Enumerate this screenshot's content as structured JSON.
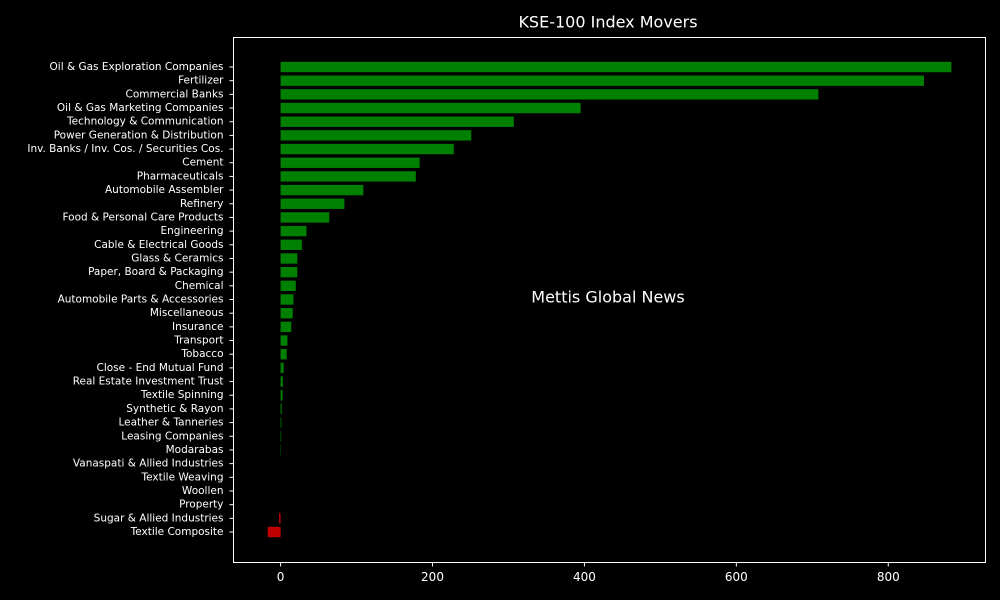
{
  "chart_data": {
    "type": "barh",
    "title": "KSE-100 Index Movers",
    "annotation": "Mettis Global News",
    "categories": [
      "Oil & Gas Exploration Companies",
      "Fertilizer",
      "Commercial Banks",
      "Oil & Gas Marketing Companies",
      "Technology & Communication",
      "Power Generation & Distribution",
      "Inv. Banks / Inv. Cos. / Securities Cos.",
      "Cement",
      "Pharmaceuticals",
      "Automobile Assembler",
      "Refinery",
      "Food & Personal Care Products",
      "Engineering",
      "Cable & Electrical Goods",
      "Glass & Ceramics",
      "Paper, Board & Packaging",
      "Chemical",
      "Automobile Parts & Accessories",
      "Miscellaneous",
      "Insurance",
      "Transport",
      "Tobacco",
      "Close - End Mutual Fund",
      "Real Estate Investment Trust",
      "Textile Spinning",
      "Synthetic & Rayon",
      "Leather & Tanneries",
      "Leasing Companies",
      "Modarabas",
      "Vanaspati & Allied Industries",
      "Textile Weaving",
      "Woollen",
      "Property",
      "Sugar & Allied Industries",
      "Textile Composite"
    ],
    "values": [
      883,
      847,
      708,
      395,
      307,
      251,
      228,
      183,
      178,
      109,
      84,
      64,
      34,
      28,
      22,
      22,
      20,
      17,
      16,
      14,
      9,
      8,
      4,
      3,
      2.5,
      1.5,
      1,
      0.8,
      0.5,
      0,
      0,
      0,
      0,
      -2,
      -17
    ],
    "color": "#008000",
    "negative_color": "#c00000",
    "annotation_color": "#c8712e",
    "xlim": [
      -62,
      928
    ],
    "xticks": [
      0,
      200,
      400,
      600,
      800
    ],
    "grid": false
  }
}
